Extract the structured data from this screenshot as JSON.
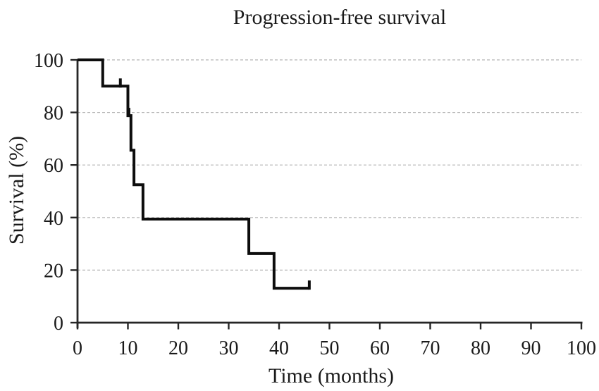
{
  "chart_data": {
    "type": "line",
    "subtype": "kaplan-meier-step",
    "title": "Progression-free survival",
    "xlabel": "Time (months)",
    "ylabel": "Survival (%)",
    "xlim": [
      0,
      100
    ],
    "ylim": [
      0,
      100
    ],
    "xticks": [
      0,
      10,
      20,
      30,
      40,
      50,
      60,
      70,
      80,
      90,
      100
    ],
    "yticks": [
      0,
      20,
      40,
      60,
      80,
      100
    ],
    "grid": {
      "horizontal": true,
      "style": "dashed",
      "color": "#b3b3b3",
      "at": [
        20,
        40,
        60,
        80,
        100
      ]
    },
    "legend": "none",
    "axis_color": "#262626",
    "text_color": "#1a1a1a",
    "series": [
      {
        "name": "Progression-free survival",
        "color": "#0d0d0d",
        "step_points": [
          [
            0,
            100
          ],
          [
            5,
            100
          ],
          [
            5,
            90
          ],
          [
            10,
            90
          ],
          [
            10,
            78.8
          ],
          [
            10.6,
            78.8
          ],
          [
            10.6,
            65.6
          ],
          [
            11.2,
            65.6
          ],
          [
            11.2,
            52.5
          ],
          [
            13,
            52.5
          ],
          [
            13,
            39.4
          ],
          [
            34,
            39.4
          ],
          [
            34,
            26.3
          ],
          [
            39,
            26.3
          ],
          [
            39,
            13.1
          ],
          [
            46,
            13.1
          ]
        ],
        "censor_marks": [
          [
            8.5,
            90
          ],
          [
            10.2,
            78.8
          ],
          [
            46,
            13.1
          ]
        ]
      }
    ]
  }
}
